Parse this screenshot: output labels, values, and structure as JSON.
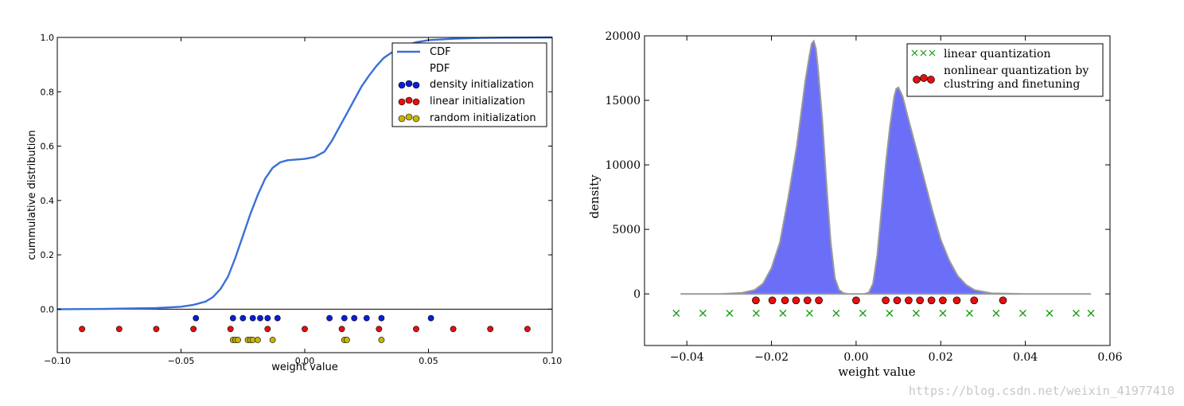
{
  "chart_data": [
    {
      "type": "line",
      "title": "",
      "xlabel": "weight value",
      "ylabel": "cummulative distribution",
      "xlim": [
        -0.1,
        0.1
      ],
      "ylim": [
        -0.16,
        1.0
      ],
      "xticks": [
        -0.1,
        -0.05,
        0.0,
        0.05,
        0.1
      ],
      "xtick_labels": [
        "−0.10",
        "−0.05",
        "0.00",
        "0.05",
        "0.10"
      ],
      "yticks": [
        0.0,
        0.2,
        0.4,
        0.6,
        0.8,
        1.0
      ],
      "ytick_labels": [
        "0.0",
        "0.2",
        "0.4",
        "0.6",
        "0.8",
        "1.0"
      ],
      "legend_position": "top-right",
      "legend": [
        "CDF",
        "PDF",
        "density initialization",
        "linear initialization",
        "random initialization"
      ],
      "cdf": {
        "name": "CDF",
        "color": "#3c6fd6",
        "x": [
          -0.1,
          -0.08,
          -0.06,
          -0.05,
          -0.045,
          -0.04,
          -0.037,
          -0.034,
          -0.031,
          -0.028,
          -0.025,
          -0.022,
          -0.019,
          -0.016,
          -0.013,
          -0.01,
          -0.007,
          -0.004,
          0.0,
          0.004,
          0.008,
          0.011,
          0.014,
          0.017,
          0.02,
          0.023,
          0.026,
          0.029,
          0.032,
          0.036,
          0.04,
          0.045,
          0.05,
          0.06,
          0.07,
          0.08,
          0.1
        ],
        "y": [
          0.0,
          0.001,
          0.004,
          0.009,
          0.016,
          0.028,
          0.045,
          0.075,
          0.12,
          0.19,
          0.27,
          0.35,
          0.42,
          0.48,
          0.52,
          0.54,
          0.548,
          0.55,
          0.553,
          0.56,
          0.58,
          0.62,
          0.67,
          0.72,
          0.77,
          0.82,
          0.86,
          0.895,
          0.925,
          0.95,
          0.968,
          0.982,
          0.99,
          0.995,
          0.998,
          0.999,
          1.0
        ]
      },
      "density_initialization": {
        "name": "density initialization",
        "color": "#0a1ed8",
        "y": -0.033,
        "x": [
          -0.044,
          -0.029,
          -0.025,
          -0.021,
          -0.018,
          -0.015,
          -0.011,
          0.01,
          0.016,
          0.02,
          0.025,
          0.031,
          0.051
        ]
      },
      "linear_initialization": {
        "name": "linear initialization",
        "color": "#e60f0f",
        "y": -0.073,
        "x": [
          -0.09,
          -0.075,
          -0.06,
          -0.045,
          -0.03,
          -0.015,
          0.0,
          0.015,
          0.03,
          0.045,
          0.06,
          0.075,
          0.09
        ]
      },
      "random_initialization": {
        "name": "random initialization",
        "color": "#c8b40a",
        "y": -0.113,
        "x": [
          -0.029,
          -0.028,
          -0.027,
          -0.023,
          -0.022,
          -0.021,
          -0.019,
          -0.013,
          0.016,
          0.017,
          0.031
        ]
      }
    },
    {
      "type": "area",
      "title": "",
      "xlabel": "weight value",
      "ylabel": "density",
      "xlim": [
        -0.05,
        0.06
      ],
      "ylim": [
        -4000,
        20000
      ],
      "xticks": [
        -0.04,
        -0.02,
        0.0,
        0.02,
        0.04,
        0.06
      ],
      "xtick_labels": [
        "−0.04",
        "−0.02",
        "0.00",
        "0.02",
        "0.04",
        "0.06"
      ],
      "yticks": [
        0,
        5000,
        10000,
        15000,
        20000
      ],
      "ytick_labels": [
        "0",
        "5000",
        "10000",
        "15000",
        "20000"
      ],
      "legend_position": "top-right",
      "legend": [
        "linear quantization",
        "nonlinear quantization by clustring and finetuning"
      ],
      "density_fill_color": "#6b6ff7",
      "density": {
        "x": [
          -0.0415,
          -0.032,
          -0.027,
          -0.024,
          -0.022,
          -0.02,
          -0.018,
          -0.016,
          -0.014,
          -0.013,
          -0.012,
          -0.011,
          -0.0105,
          -0.01,
          -0.0095,
          -0.009,
          -0.008,
          -0.007,
          -0.006,
          -0.005,
          -0.004,
          -0.003,
          -0.002,
          -0.001,
          0.0,
          0.001,
          0.002,
          0.003,
          0.004,
          0.005,
          0.006,
          0.007,
          0.008,
          0.009,
          0.0095,
          0.01,
          0.011,
          0.012,
          0.014,
          0.016,
          0.018,
          0.02,
          0.022,
          0.024,
          0.026,
          0.028,
          0.032,
          0.04,
          0.0555
        ],
        "y": [
          0,
          0,
          80,
          300,
          800,
          2000,
          4000,
          7500,
          11500,
          14000,
          16500,
          18500,
          19400,
          19600,
          19000,
          17500,
          13500,
          8500,
          4000,
          1200,
          300,
          60,
          0,
          0,
          0,
          0,
          0,
          100,
          800,
          3000,
          6500,
          10000,
          13000,
          15300,
          15900,
          16000,
          15300,
          14000,
          11500,
          9000,
          6500,
          4200,
          2600,
          1400,
          700,
          300,
          50,
          0,
          0
        ]
      },
      "linear_quantization": {
        "name": "linear quantization",
        "color": "#129a12",
        "y": -1500,
        "x": [
          -0.0425,
          -0.0362,
          -0.0299,
          -0.0236,
          -0.0173,
          -0.011,
          -0.0047,
          0.0016,
          0.0079,
          0.0142,
          0.0205,
          0.0268,
          0.0331,
          0.0394,
          0.0457,
          0.052,
          0.0555
        ]
      },
      "nonlinear_quantization": {
        "name": "nonlinear quantization by clustring and finetuning",
        "color": "#e60f0f",
        "y": -500,
        "x": [
          -0.0237,
          -0.0198,
          -0.0168,
          -0.0142,
          -0.0115,
          -0.0088,
          0.0,
          0.007,
          0.0097,
          0.0124,
          0.0151,
          0.0178,
          0.0205,
          0.0238,
          0.0279,
          0.0347
        ]
      }
    }
  ],
  "watermark": "https://blog.csdn.net/weixin_41977410"
}
